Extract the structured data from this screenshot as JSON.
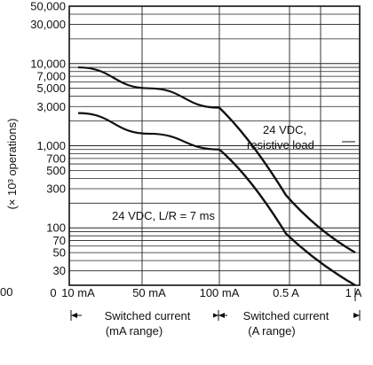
{
  "chart_data": {
    "type": "line",
    "ylabel": "(× 10³ operations)",
    "y_scale": "log",
    "ylim": [
      20,
      50000
    ],
    "y_ticks": [
      50000,
      30000,
      10000,
      7000,
      5000,
      3000,
      1000,
      700,
      500,
      300,
      100,
      70,
      50,
      30
    ],
    "y_tick_labels": [
      "50,000",
      "30,000",
      "10,000",
      "7,000",
      "5,000",
      "3,000",
      "1,000",
      "700",
      "500",
      "300",
      "100",
      "70",
      "50",
      "30"
    ],
    "y_zero_label": "00",
    "x_ticks": [
      "0",
      "10 mA",
      "50 mA",
      "100 mA",
      "0.5 A",
      "1 A"
    ],
    "x_ranges": [
      {
        "name": "Switched current",
        "sub": "(mA range)",
        "from": "10 mA",
        "to": "100 mA"
      },
      {
        "name": "Switched current",
        "sub": "(A range)",
        "from": "100 mA",
        "to": "1 A"
      }
    ],
    "series": [
      {
        "name": "24 VDC, resistive load",
        "x": [
          "10 mA",
          "50 mA",
          "100 mA",
          "0.5 A",
          "1 A"
        ],
        "y": [
          9000,
          5000,
          2900,
          250,
          50
        ]
      },
      {
        "name": "24 VDC, L/R = 7 ms",
        "x": [
          "10 mA",
          "50 mA",
          "100 mA",
          "0.5 A",
          "1 A"
        ],
        "y": [
          2500,
          1400,
          900,
          85,
          20
        ]
      }
    ],
    "grid": true
  }
}
